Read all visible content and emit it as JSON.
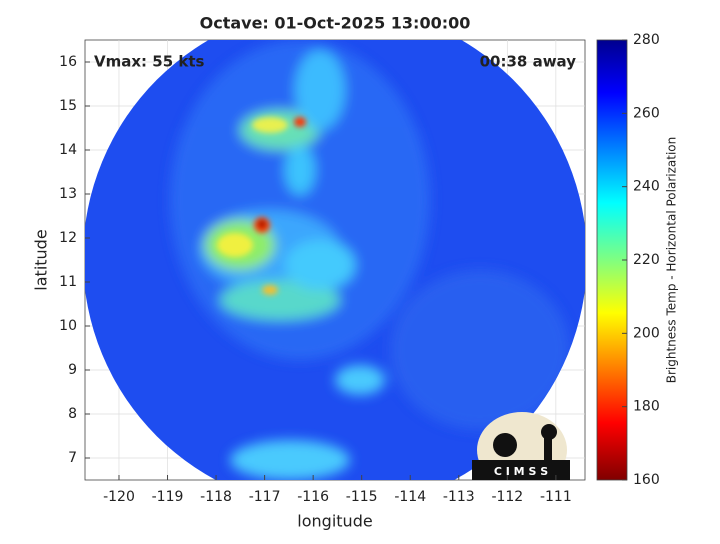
{
  "chart_data": {
    "type": "image",
    "title": "Octave: 01-Oct-2025 13:00:00",
    "annotations": [
      "Vmax: 55 kts",
      "00:38 away"
    ],
    "xlabel": "longitude",
    "ylabel": "latitude",
    "xlim": [
      -120.7,
      -110.4
    ],
    "ylim": [
      6.5,
      16.5
    ],
    "xticks": [
      -120,
      -119,
      -118,
      -117,
      -116,
      -115,
      -114,
      -113,
      -112,
      -111
    ],
    "yticks": [
      7,
      8,
      9,
      10,
      11,
      12,
      13,
      14,
      15,
      16
    ],
    "grid": true,
    "colorbar": {
      "label": "Brightness Temp - Horizontal Polarization",
      "clim": [
        160,
        280
      ],
      "ticks": [
        160,
        180,
        200,
        220,
        240,
        260,
        280
      ],
      "colormap": "jet_r"
    },
    "logo": "C I M S S"
  }
}
